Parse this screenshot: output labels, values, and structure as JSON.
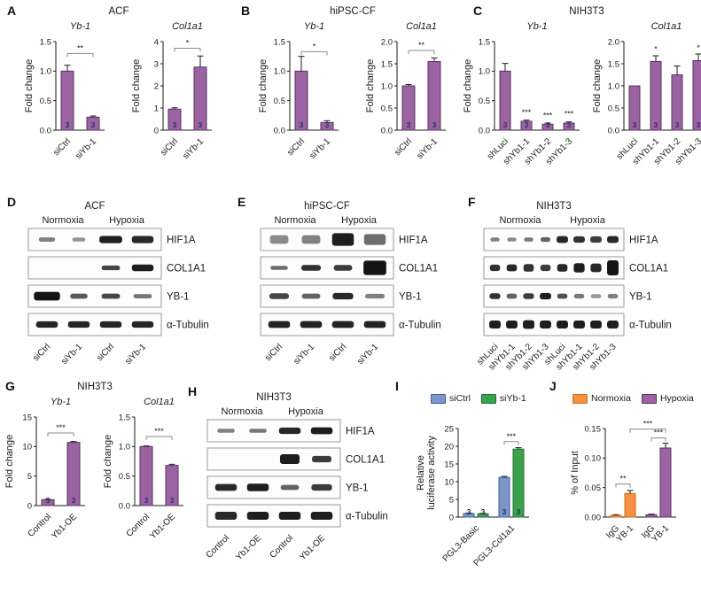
{
  "colors": {
    "purple": {
      "fill": "#9b63a2",
      "edge": "#5a3363"
    },
    "blue": {
      "fill": "#7d95c7",
      "edge": "#3e5f9e"
    },
    "green": {
      "fill": "#39a24a",
      "edge": "#1f7030"
    },
    "orange": {
      "fill": "#f79140",
      "edge": "#c76f22"
    },
    "n_text": "#2d2f6b",
    "axis": "#1a1a1a",
    "sig": "#8c8c8c",
    "band": "#141414",
    "box_edge": "#9a9a9a"
  },
  "chart_data": [
    {
      "panel": "A",
      "type": "bar",
      "title": "Yb-1",
      "ylabel": "Fold change",
      "yticks": [
        "0.0",
        "0.5",
        "1.0",
        "1.5"
      ],
      "ylim": [
        0,
        1.5
      ],
      "categories": [
        "siCtrl",
        "siYb-1"
      ],
      "series": [
        {
          "name": null,
          "color": "purple",
          "values": [
            1.0,
            0.22
          ],
          "errors": [
            0.1,
            0.02
          ]
        }
      ],
      "n": [
        "3",
        "3"
      ],
      "sig": [
        {
          "bars": [
            0,
            1
          ],
          "y": 1.3,
          "label": "**"
        }
      ]
    },
    {
      "panel": "A",
      "type": "bar",
      "title": "Col1a1",
      "ylabel": "Fold change",
      "yticks": [
        "0",
        "1",
        "2",
        "3",
        "4"
      ],
      "ylim": [
        0,
        4
      ],
      "categories": [
        "siCtrl",
        "siYb-1"
      ],
      "series": [
        {
          "name": null,
          "color": "purple",
          "values": [
            0.95,
            2.85
          ],
          "errors": [
            0.06,
            0.5
          ]
        }
      ],
      "n": [
        "3",
        "3"
      ],
      "sig": [
        {
          "bars": [
            0,
            1
          ],
          "y": 3.7,
          "label": "*"
        }
      ]
    },
    {
      "panel": "B",
      "type": "bar",
      "title": "Yb-1",
      "ylabel": "Fold change",
      "yticks": [
        "0.0",
        "0.5",
        "1.0",
        "1.5"
      ],
      "ylim": [
        0,
        1.5
      ],
      "categories": [
        "siCtrl",
        "siYb-1"
      ],
      "series": [
        {
          "name": null,
          "color": "purple",
          "values": [
            1.0,
            0.13
          ],
          "errors": [
            0.25,
            0.03
          ]
        }
      ],
      "n": [
        "3",
        "3"
      ],
      "sig": [
        {
          "bars": [
            0,
            1
          ],
          "y": 1.33,
          "label": "*"
        }
      ]
    },
    {
      "panel": "B",
      "type": "bar",
      "title": "Col1a1",
      "ylabel": "Fold change",
      "yticks": [
        "0.0",
        "0.5",
        "1.0",
        "1.5",
        "2.0"
      ],
      "ylim": [
        0,
        2
      ],
      "categories": [
        "siCtrl",
        "siYb-1"
      ],
      "series": [
        {
          "name": null,
          "color": "purple",
          "values": [
            1.0,
            1.55
          ],
          "errors": [
            0.03,
            0.08
          ]
        }
      ],
      "n": [
        "3",
        "3"
      ],
      "sig": [
        {
          "bars": [
            0,
            1
          ],
          "y": 1.8,
          "label": "**"
        }
      ]
    },
    {
      "panel": "C",
      "type": "bar",
      "title": "Yb-1",
      "ylabel": "Fold change",
      "yticks": [
        "0.0",
        "0.5",
        "1.0",
        "1.5"
      ],
      "ylim": [
        0,
        1.5
      ],
      "categories": [
        "shLuci",
        "shYb1-1",
        "shYb1-2",
        "shYb1-3"
      ],
      "series": [
        {
          "name": null,
          "color": "purple",
          "values": [
            1.0,
            0.15,
            0.1,
            0.12
          ],
          "errors": [
            0.13,
            0.02,
            0.02,
            0.02
          ]
        }
      ],
      "n": [
        "3",
        "3",
        "3",
        "3"
      ],
      "sig": [
        {
          "bars": [
            1,
            1
          ],
          "y": 0.3,
          "label": "***"
        },
        {
          "bars": [
            2,
            2
          ],
          "y": 0.25,
          "label": "***"
        },
        {
          "bars": [
            3,
            3
          ],
          "y": 0.28,
          "label": "***"
        }
      ]
    },
    {
      "panel": "C",
      "type": "bar",
      "title": "Col1a1",
      "ylabel": "Fold change",
      "yticks": [
        "0.0",
        "0.5",
        "1.0",
        "1.5",
        "2.0"
      ],
      "ylim": [
        0,
        2
      ],
      "categories": [
        "shLuci",
        "shYb1-1",
        "shYb1-2",
        "shYb1-3"
      ],
      "series": [
        {
          "name": null,
          "color": "purple",
          "values": [
            1.0,
            1.55,
            1.25,
            1.57
          ],
          "errors": [
            0,
            0.13,
            0.2,
            0.15
          ]
        }
      ],
      "n": [
        "3",
        "3",
        "3",
        "3"
      ],
      "sig": [
        {
          "bars": [
            1,
            1
          ],
          "y": 1.83,
          "label": "*"
        },
        {
          "bars": [
            3,
            3
          ],
          "y": 1.86,
          "label": "*"
        }
      ]
    },
    {
      "panel": "G",
      "type": "bar",
      "title": "Yb-1",
      "ylabel": "Fold change",
      "yticks": [
        "0",
        "5",
        "10",
        "15"
      ],
      "ylim": [
        0,
        15
      ],
      "categories": [
        "Control",
        "Yb1-OE"
      ],
      "series": [
        {
          "name": null,
          "color": "purple",
          "values": [
            1.0,
            10.7
          ],
          "errors": [
            0.05,
            0.15
          ]
        }
      ],
      "n": [
        "3",
        "3"
      ],
      "sig": [
        {
          "bars": [
            0,
            1
          ],
          "y": 12.3,
          "label": "***"
        }
      ]
    },
    {
      "panel": "G",
      "type": "bar",
      "title": "Col1a1",
      "ylabel": "Fold change",
      "yticks": [
        "0.0",
        "0.5",
        "1.0",
        "1.5"
      ],
      "ylim": [
        0,
        1.5
      ],
      "categories": [
        "Control",
        "Yb1-OE"
      ],
      "series": [
        {
          "name": null,
          "color": "purple",
          "values": [
            1.0,
            0.68
          ],
          "errors": [
            0.01,
            0.02
          ]
        }
      ],
      "n": [
        "3",
        "3"
      ],
      "sig": [
        {
          "bars": [
            0,
            1
          ],
          "y": 1.17,
          "label": "***"
        }
      ]
    },
    {
      "panel": "I",
      "type": "bar",
      "title": "",
      "ylabel_lines": [
        "Relative",
        "luciferase activity"
      ],
      "yticks": [
        "0",
        "5",
        "10",
        "15",
        "20",
        "25"
      ],
      "ylim": [
        0,
        25
      ],
      "categories": [
        "PGL3-Basic",
        "PGL3-Col1a1"
      ],
      "group_by": "category",
      "legend": true,
      "series": [
        {
          "name": "siCtrl",
          "color": "blue",
          "values": [
            1.0,
            11.2
          ],
          "errors": [
            0.12,
            0.3
          ]
        },
        {
          "name": "siYb-1",
          "color": "green",
          "values": [
            0.95,
            19.2
          ],
          "errors": [
            0.1,
            0.4
          ]
        }
      ],
      "n": [
        "3",
        "3",
        "3",
        "3"
      ],
      "sig": [
        {
          "bars": [
            2,
            3
          ],
          "y": 21.3,
          "label": "***"
        }
      ]
    },
    {
      "panel": "J",
      "type": "bar",
      "title": "",
      "ylabel": "% of Input",
      "yticks": [
        "0.00",
        "0.05",
        "0.10",
        "0.15"
      ],
      "ylim": [
        0,
        0.15
      ],
      "categories": [
        "IgG",
        "YB-1"
      ],
      "group_by": "series",
      "legend": true,
      "series": [
        {
          "name": "Normoxia",
          "color": "orange",
          "values": [
            0.003,
            0.04
          ],
          "errors": [
            0.001,
            0.005
          ]
        },
        {
          "name": "Hypoxia",
          "color": "purple",
          "values": [
            0.004,
            0.117
          ],
          "errors": [
            0.001,
            0.008
          ]
        }
      ],
      "sig": [
        {
          "bars": [
            0,
            1
          ],
          "y": 0.056,
          "label": "**"
        },
        {
          "bars": [
            2,
            3
          ],
          "y": 0.134,
          "label": "***"
        },
        {
          "bars": [
            1,
            3
          ],
          "y": 0.149,
          "label": "***"
        }
      ]
    }
  ],
  "panels": {
    "A": {
      "letter": "A",
      "title": "ACF",
      "charts": [
        0,
        1
      ]
    },
    "B": {
      "letter": "B",
      "title": "hiPSC-CF",
      "charts": [
        2,
        3
      ]
    },
    "C": {
      "letter": "C",
      "title": "NIH3T3",
      "charts": [
        4,
        5
      ]
    },
    "D": {
      "letter": "D",
      "title": "ACF",
      "type": "blot",
      "conditions": [
        {
          "label": "Normoxia",
          "span": 2
        },
        {
          "label": "Hypoxia",
          "span": 2
        }
      ],
      "lanes": [
        "siCtrl",
        "siYb-1",
        "siCtrl",
        "siYb-1"
      ],
      "rows": [
        {
          "label": "HIF1A",
          "bands": [
            [
              0.45,
              0.75,
              0.75
            ],
            [
              0.35,
              0.6,
              0.7
            ],
            [
              0.95,
              1.05,
              1.25
            ],
            [
              0.9,
              1,
              1.25
            ]
          ]
        },
        {
          "label": "COL1A1",
          "bands": [
            0,
            0,
            [
              0.75,
              0.85,
              0.8
            ],
            [
              0.95,
              1,
              1.15
            ]
          ]
        },
        {
          "label": "YB-1",
          "bands": [
            [
              1,
              1.2,
              1.5
            ],
            [
              0.65,
              0.8,
              0.9
            ],
            [
              0.75,
              0.85,
              0.9
            ],
            [
              0.5,
              0.85,
              0.75
            ]
          ]
        },
        {
          "label": "α-Tubulin",
          "bands": [
            [
              0.92,
              1,
              1.1
            ],
            [
              0.92,
              1,
              1.1
            ],
            [
              0.92,
              1,
              1.1
            ],
            [
              0.92,
              1,
              1.1
            ]
          ]
        }
      ]
    },
    "E": {
      "letter": "E",
      "title": "hiPSC-CF",
      "type": "blot",
      "conditions": [
        {
          "label": "Normoxia",
          "span": 2
        },
        {
          "label": "Hypoxia",
          "span": 2
        }
      ],
      "lanes": [
        "siCtrl",
        "siYb-1",
        "siCtrl",
        "siYb-1"
      ],
      "rows": [
        {
          "label": "HIF1A",
          "bands": [
            [
              0.4,
              0.85,
              1.5
            ],
            [
              0.45,
              0.85,
              1.5
            ],
            [
              0.95,
              1,
              2.2
            ],
            [
              0.55,
              1,
              1.9
            ]
          ]
        },
        {
          "label": "COL1A1",
          "bands": [
            [
              0.55,
              0.8,
              0.7
            ],
            [
              0.85,
              0.9,
              1.0
            ],
            [
              0.8,
              0.85,
              1.0
            ],
            [
              1,
              1.05,
              2.5
            ]
          ]
        },
        {
          "label": "YB-1",
          "bands": [
            [
              0.75,
              0.9,
              1.0
            ],
            [
              0.6,
              0.85,
              0.9
            ],
            [
              0.9,
              0.95,
              1.1
            ],
            [
              0.45,
              0.9,
              0.8
            ]
          ]
        },
        {
          "label": "α-Tubulin",
          "bands": [
            [
              0.92,
              1,
              1.2
            ],
            [
              0.92,
              1,
              1.2
            ],
            [
              0.92,
              1,
              1.2
            ],
            [
              0.92,
              1,
              1.2
            ]
          ]
        }
      ]
    },
    "F": {
      "letter": "F",
      "title": "NIH3T3",
      "type": "blot",
      "conditions": [
        {
          "label": "Normoxia",
          "span": 4
        },
        {
          "label": "Hypoxia",
          "span": 4
        }
      ],
      "lanes": [
        "shLuci",
        "shYb1-1",
        "shYb1-2",
        "shYb1-3",
        "shLuci",
        "shYb1-1",
        "shYb1-2",
        "shYb1-3"
      ],
      "rows": [
        {
          "label": "HIF1A",
          "bands": [
            [
              0.45,
              0.8,
              0.7
            ],
            [
              0.4,
              0.8,
              0.7
            ],
            [
              0.5,
              0.8,
              0.7
            ],
            [
              0.6,
              0.85,
              0.8
            ],
            [
              0.9,
              1,
              1.2
            ],
            [
              0.85,
              1,
              1.1
            ],
            [
              0.8,
              1,
              1.1
            ],
            [
              0.9,
              1,
              1.2
            ]
          ]
        },
        {
          "label": "COL1A1",
          "bands": [
            [
              0.85,
              0.9,
              1.1
            ],
            [
              0.9,
              0.9,
              1.2
            ],
            [
              0.85,
              0.9,
              1.3
            ],
            [
              0.8,
              0.9,
              1.1
            ],
            [
              0.9,
              0.9,
              1.3
            ],
            [
              0.95,
              0.95,
              1.6
            ],
            [
              0.9,
              0.95,
              1.5
            ],
            [
              1,
              1,
              2.6
            ]
          ]
        },
        {
          "label": "YB-1",
          "bands": [
            [
              0.85,
              0.95,
              1
            ],
            [
              0.6,
              0.9,
              0.9
            ],
            [
              0.8,
              0.95,
              1
            ],
            [
              0.95,
              1,
              1.1
            ],
            [
              0.7,
              0.9,
              0.9
            ],
            [
              0.5,
              0.9,
              0.8
            ],
            [
              0.35,
              0.9,
              0.7
            ],
            [
              0.45,
              0.9,
              0.8
            ]
          ]
        },
        {
          "label": "α-Tubulin",
          "bands": [
            [
              0.95,
              1,
              1.4
            ],
            [
              0.95,
              1,
              1.4
            ],
            [
              0.95,
              1,
              1.5
            ],
            [
              0.95,
              1,
              1.4
            ],
            [
              0.95,
              1,
              1.4
            ],
            [
              0.95,
              1,
              1.4
            ],
            [
              0.95,
              1,
              1.4
            ],
            [
              0.95,
              1,
              1.4
            ]
          ]
        }
      ]
    },
    "G": {
      "letter": "G",
      "title": "NIH3T3",
      "charts": [
        6,
        7
      ]
    },
    "H": {
      "letter": "H",
      "title": "NIH3T3",
      "type": "blot",
      "conditions": [
        {
          "label": "Normoxia",
          "span": 2
        },
        {
          "label": "Hypoxia",
          "span": 2
        }
      ],
      "lanes": [
        "Control",
        "Yb1-OE",
        "Control",
        "Yb1-OE"
      ],
      "rows": [
        {
          "label": "HIF1A",
          "bands": [
            [
              0.45,
              0.8,
              0.7
            ],
            [
              0.5,
              0.8,
              0.7
            ],
            [
              0.9,
              1,
              1.1
            ],
            [
              0.95,
              1,
              1.2
            ]
          ]
        },
        {
          "label": "COL1A1",
          "bands": [
            0,
            0,
            [
              0.95,
              0.9,
              1.7
            ],
            [
              0.8,
              0.9,
              1.1
            ]
          ]
        },
        {
          "label": "YB-1",
          "bands": [
            [
              0.9,
              1,
              1.2
            ],
            [
              0.95,
              1,
              1.3
            ],
            [
              0.6,
              0.85,
              0.9
            ],
            [
              0.8,
              0.95,
              1.1
            ]
          ]
        },
        {
          "label": "α-Tubulin",
          "bands": [
            [
              0.9,
              1,
              1.4
            ],
            [
              0.95,
              1,
              1.4
            ],
            [
              0.95,
              1,
              1.4
            ],
            [
              0.95,
              1,
              1.4
            ]
          ]
        }
      ]
    },
    "I": {
      "letter": "I",
      "charts": [
        8
      ]
    },
    "J": {
      "letter": "J",
      "charts": [
        9
      ]
    }
  }
}
